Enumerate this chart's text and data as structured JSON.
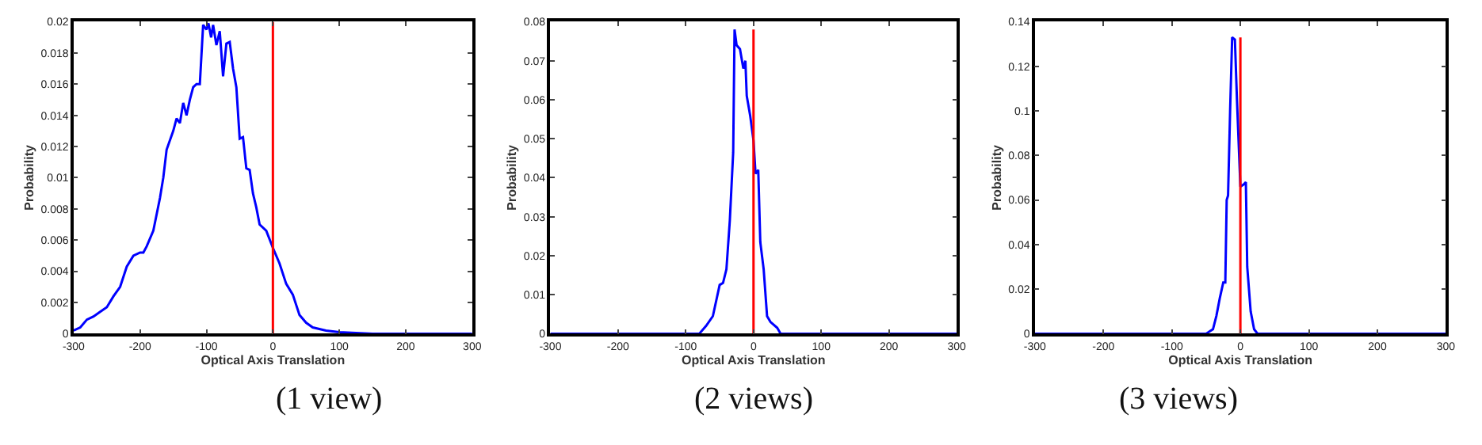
{
  "chart_data": [
    {
      "type": "line",
      "title": "(1 view)",
      "xlabel": "Optical Axis Translation",
      "ylabel": "Probability",
      "xlim": [
        -300,
        300
      ],
      "xticks": [
        -300,
        -200,
        -100,
        0,
        100,
        200,
        300
      ],
      "ylim": [
        0,
        0.02
      ],
      "yticks": [
        0,
        0.002,
        0.004,
        0.006,
        0.008,
        0.01,
        0.012,
        0.014,
        0.016,
        0.018,
        0.02
      ],
      "grid": false,
      "series": [
        {
          "color": "#0000ff",
          "x": [
            -300,
            -290,
            -280,
            -270,
            -260,
            -250,
            -240,
            -230,
            -220,
            -210,
            -200,
            -195,
            -190,
            -180,
            -170,
            -165,
            -160,
            -150,
            -145,
            -140,
            -135,
            -130,
            -125,
            -120,
            -115,
            -110,
            -105,
            -100,
            -97,
            -93,
            -90,
            -85,
            -80,
            -75,
            -70,
            -65,
            -60,
            -55,
            -50,
            -45,
            -40,
            -35,
            -30,
            -25,
            -20,
            -10,
            0,
            10,
            20,
            30,
            40,
            50,
            60,
            80,
            100,
            150,
            300
          ],
          "values": [
            0.0002,
            0.0004,
            0.0009,
            0.0011,
            0.0014,
            0.0017,
            0.0024,
            0.003,
            0.0043,
            0.005,
            0.0052,
            0.0052,
            0.0056,
            0.0066,
            0.0087,
            0.01,
            0.0118,
            0.013,
            0.0138,
            0.0135,
            0.0148,
            0.014,
            0.015,
            0.0158,
            0.016,
            0.016,
            0.0198,
            0.0195,
            0.0199,
            0.019,
            0.0198,
            0.0185,
            0.0194,
            0.0165,
            0.0186,
            0.0187,
            0.017,
            0.0158,
            0.0125,
            0.0126,
            0.0106,
            0.0105,
            0.009,
            0.0081,
            0.007,
            0.0066,
            0.0055,
            0.0045,
            0.0032,
            0.0025,
            0.0012,
            0.0007,
            0.0004,
            0.0002,
            0.0001,
            0,
            0
          ]
        },
        {
          "color": "#ff0000",
          "x": [
            0,
            0
          ],
          "values": [
            0,
            0.02
          ]
        }
      ]
    },
    {
      "type": "line",
      "title": "(2 views)",
      "xlabel": "Optical Axis Translation",
      "ylabel": "Probability",
      "xlim": [
        -300,
        300
      ],
      "xticks": [
        -300,
        -200,
        -100,
        0,
        100,
        200,
        300
      ],
      "ylim": [
        0,
        0.08
      ],
      "yticks": [
        0,
        0.01,
        0.02,
        0.03,
        0.04,
        0.05,
        0.06,
        0.07,
        0.08
      ],
      "grid": false,
      "series": [
        {
          "color": "#0000ff",
          "x": [
            -300,
            -80,
            -70,
            -60,
            -50,
            -45,
            -40,
            -35,
            -30,
            -28,
            -25,
            -20,
            -15,
            -12,
            -10,
            -5,
            0,
            3,
            7,
            10,
            15,
            20,
            25,
            35,
            40,
            300
          ],
          "values": [
            0,
            0,
            0.002,
            0.0045,
            0.0125,
            0.013,
            0.0165,
            0.029,
            0.0465,
            0.078,
            0.074,
            0.073,
            0.068,
            0.07,
            0.061,
            0.056,
            0.0495,
            0.041,
            0.042,
            0.0235,
            0.0165,
            0.0045,
            0.003,
            0.0015,
            0,
            0
          ]
        },
        {
          "color": "#ff0000",
          "x": [
            0,
            0
          ],
          "values": [
            0,
            0.078
          ]
        }
      ]
    },
    {
      "type": "line",
      "title": "(3 views)",
      "xlabel": "Optical Axis Translation",
      "ylabel": "Probability",
      "xlim": [
        -300,
        300
      ],
      "xticks": [
        -300,
        -200,
        -100,
        0,
        100,
        200,
        300
      ],
      "ylim": [
        0,
        0.14
      ],
      "yticks": [
        0,
        0.02,
        0.04,
        0.06,
        0.08,
        0.1,
        0.12,
        0.14
      ],
      "grid": false,
      "series": [
        {
          "color": "#0000ff",
          "x": [
            -300,
            -50,
            -40,
            -35,
            -30,
            -25,
            -22,
            -20,
            -18,
            -15,
            -12,
            -8,
            -5,
            0,
            5,
            8,
            10,
            15,
            20,
            25,
            300
          ],
          "values": [
            0,
            0,
            0.002,
            0.008,
            0.016,
            0.023,
            0.023,
            0.06,
            0.062,
            0.1,
            0.133,
            0.132,
            0.105,
            0.066,
            0.067,
            0.068,
            0.03,
            0.01,
            0.002,
            0,
            0
          ]
        },
        {
          "color": "#ff0000",
          "x": [
            0,
            0
          ],
          "values": [
            0,
            0.133
          ]
        }
      ]
    }
  ]
}
